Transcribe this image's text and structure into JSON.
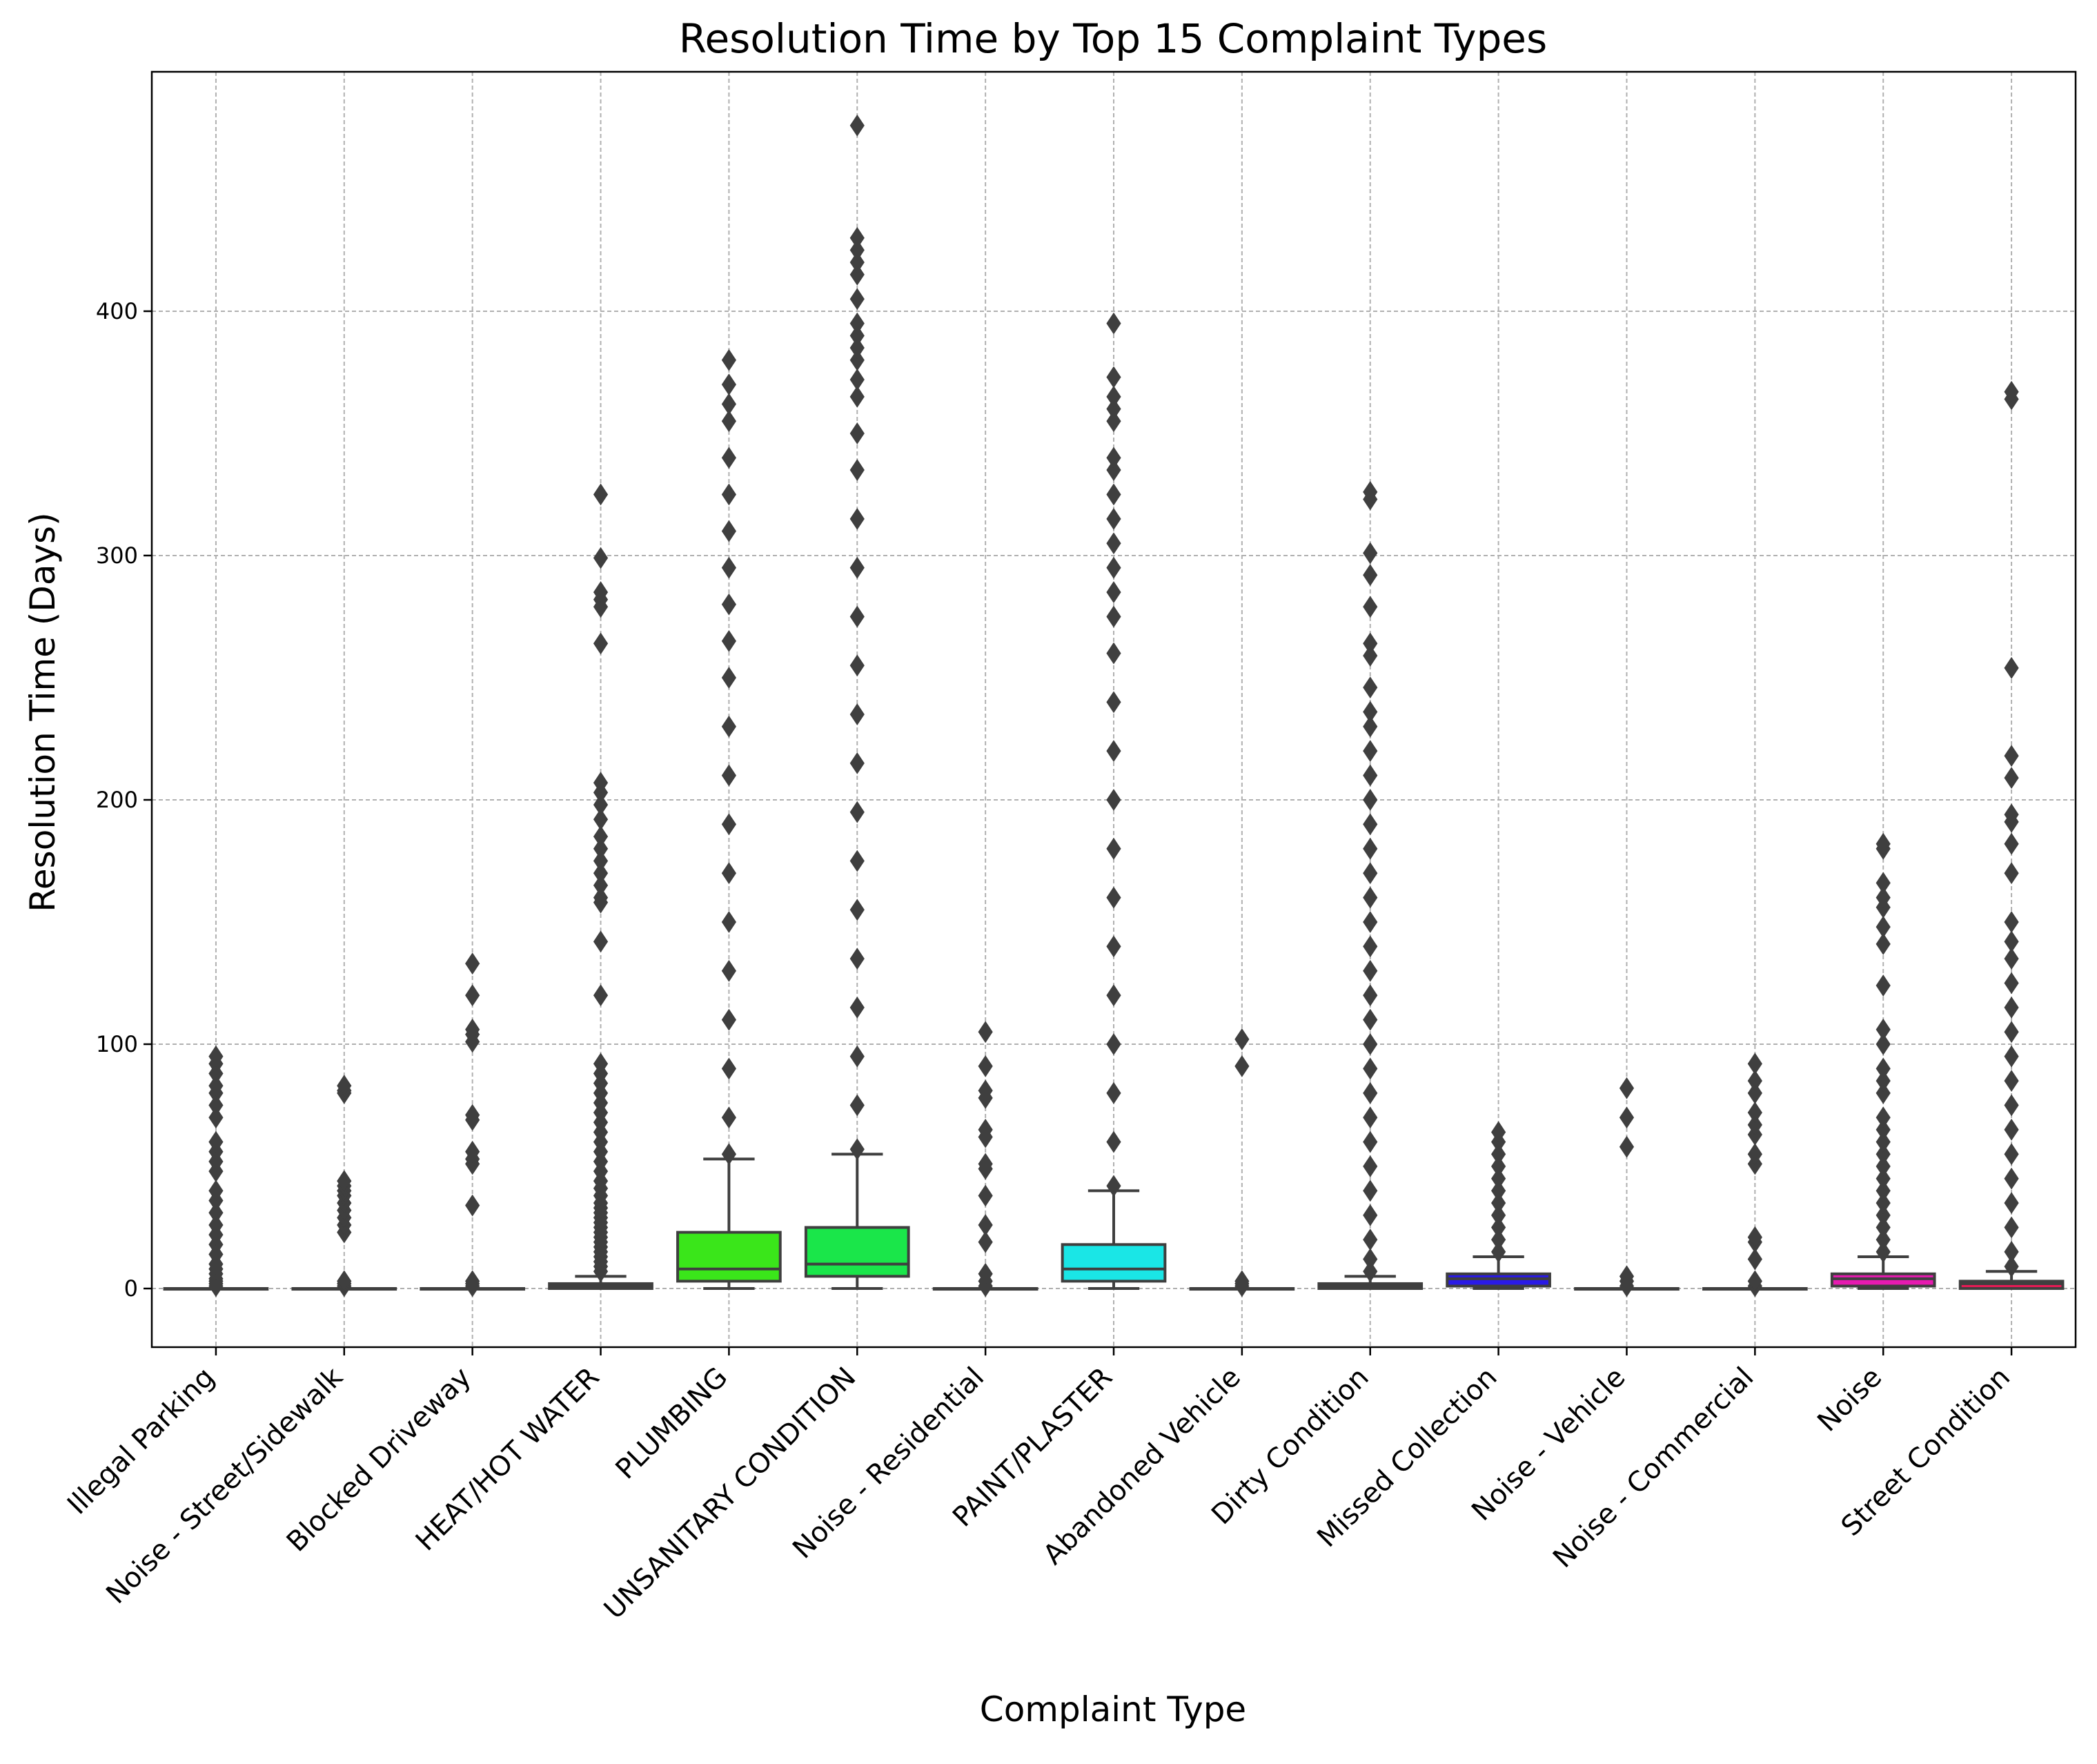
{
  "chart_data": {
    "type": "box",
    "title": "Resolution Time by Top 15 Complaint Types",
    "xlabel": "Complaint Type",
    "ylabel": "Resolution Time (Days)",
    "ylim": [
      -24,
      498
    ],
    "yticks": [
      0,
      100,
      200,
      300,
      400
    ],
    "grid": true,
    "categories": [
      "Illegal Parking",
      "Noise - Street/Sidewalk",
      "Blocked Driveway",
      "HEAT/HOT WATER",
      "PLUMBING",
      "UNSANITARY CONDITION",
      "Noise - Residential",
      "PAINT/PLASTER",
      "Abandoned Vehicle",
      "Dirty Condition",
      "Missed Collection",
      "Noise - Vehicle",
      "Noise - Commercial",
      "Noise",
      "Street Condition"
    ],
    "boxes": [
      {
        "category": "Illegal Parking",
        "color": "#e63030",
        "whisker_low": 0,
        "q1": 0,
        "median": 0,
        "q3": 0,
        "whisker_high": 0,
        "outliers": [
          1,
          2,
          3,
          4,
          6,
          8,
          10,
          14,
          18,
          22,
          26,
          31,
          36,
          40,
          48,
          52,
          56,
          60,
          70,
          75,
          80,
          83,
          88,
          92,
          95
        ]
      },
      {
        "category": "Noise - Street/Sidewalk",
        "color": "#e67a30",
        "whisker_low": 0,
        "q1": 0,
        "median": 0,
        "q3": 0,
        "whisker_high": 0,
        "outliers": [
          1,
          2,
          3,
          23,
          26,
          29,
          32,
          35,
          38,
          40,
          42,
          44,
          80,
          81,
          83
        ]
      },
      {
        "category": "Blocked Driveway",
        "color": "#e6c530",
        "whisker_low": 0,
        "q1": 0,
        "median": 0,
        "q3": 0,
        "whisker_high": 0,
        "outliers": [
          1,
          2,
          3,
          34,
          51,
          53,
          56,
          69,
          71,
          101,
          104,
          106,
          120,
          133
        ]
      },
      {
        "category": "HEAT/HOT WATER",
        "color": "#b0e630",
        "whisker_low": 0,
        "q1": 0,
        "median": 1,
        "q3": 2,
        "whisker_high": 5,
        "outliers": [
          7,
          9,
          11,
          13,
          15,
          17,
          19,
          21,
          23,
          25,
          27,
          29,
          31,
          33,
          35,
          38,
          41,
          44,
          48,
          52,
          56,
          60,
          64,
          68,
          72,
          76,
          80,
          84,
          88,
          92,
          120,
          142,
          158,
          160,
          165,
          170,
          175,
          180,
          185,
          192,
          198,
          203,
          207,
          264,
          279,
          282,
          285,
          299,
          325
        ]
      },
      {
        "category": "PLUMBING",
        "color": "#3ae61a",
        "whisker_low": 0,
        "q1": 3,
        "median": 8,
        "q3": 23,
        "whisker_high": 53,
        "outliers": [
          55,
          70,
          90,
          110,
          130,
          150,
          170,
          190,
          210,
          230,
          250,
          265,
          280,
          295,
          310,
          325,
          340,
          355,
          362,
          370,
          380
        ]
      },
      {
        "category": "UNSANITARY CONDITION",
        "color": "#1ae64a",
        "whisker_low": 0,
        "q1": 5,
        "median": 10,
        "q3": 25,
        "whisker_high": 55,
        "outliers": [
          57,
          75,
          95,
          115,
          135,
          155,
          175,
          195,
          215,
          235,
          255,
          275,
          295,
          315,
          335,
          350,
          365,
          372,
          380,
          385,
          390,
          395,
          405,
          415,
          420,
          425,
          430,
          476
        ]
      },
      {
        "category": "Noise - Residential",
        "color": "#1ae6a0",
        "whisker_low": 0,
        "q1": 0,
        "median": 0,
        "q3": 0,
        "whisker_high": 0,
        "outliers": [
          1,
          3,
          6,
          19,
          26,
          38,
          49,
          51,
          62,
          65,
          78,
          81,
          91,
          105
        ]
      },
      {
        "category": "PAINT/PLASTER",
        "color": "#1ae6e6",
        "whisker_low": 0,
        "q1": 3,
        "median": 8,
        "q3": 18,
        "whisker_high": 40,
        "outliers": [
          42,
          60,
          80,
          100,
          120,
          140,
          160,
          180,
          200,
          220,
          240,
          260,
          275,
          285,
          295,
          305,
          315,
          325,
          335,
          340,
          355,
          360,
          365,
          373,
          395
        ]
      },
      {
        "category": "Abandoned Vehicle",
        "color": "#1a9ee6",
        "whisker_low": 0,
        "q1": 0,
        "median": 0,
        "q3": 0,
        "whisker_high": 0,
        "outliers": [
          1,
          2,
          3,
          91,
          102
        ]
      },
      {
        "category": "Dirty Condition",
        "color": "#1a55e6",
        "whisker_low": 0,
        "q1": 0,
        "median": 1,
        "q3": 2,
        "whisker_high": 5,
        "outliers": [
          7,
          12,
          20,
          30,
          40,
          50,
          60,
          70,
          80,
          90,
          100,
          110,
          120,
          130,
          140,
          150,
          160,
          170,
          180,
          190,
          200,
          210,
          220,
          230,
          236,
          246,
          259,
          264,
          279,
          292,
          301,
          323,
          326
        ]
      },
      {
        "category": "Missed Collection",
        "color": "#2a1ae6",
        "whisker_low": 0,
        "q1": 1,
        "median": 4,
        "q3": 6,
        "whisker_high": 13,
        "outliers": [
          15,
          20,
          25,
          30,
          35,
          40,
          45,
          50,
          55,
          60,
          64
        ]
      },
      {
        "category": "Noise - Vehicle",
        "color": "#7a1ae6",
        "whisker_low": 0,
        "q1": 0,
        "median": 0,
        "q3": 0,
        "whisker_high": 0,
        "outliers": [
          1,
          3,
          5,
          58,
          70,
          82
        ]
      },
      {
        "category": "Noise - Commercial",
        "color": "#c51ae6",
        "whisker_low": 0,
        "q1": 0,
        "median": 0,
        "q3": 0,
        "whisker_high": 0,
        "outliers": [
          1,
          3,
          12,
          19,
          21,
          51,
          55,
          63,
          67,
          72,
          80,
          85,
          92
        ]
      },
      {
        "category": "Noise",
        "color": "#e61ab0",
        "whisker_low": 0,
        "q1": 1,
        "median": 4,
        "q3": 6,
        "whisker_high": 13,
        "outliers": [
          15,
          20,
          25,
          30,
          35,
          40,
          45,
          50,
          55,
          60,
          65,
          70,
          80,
          85,
          90,
          100,
          106,
          124,
          141,
          148,
          156,
          160,
          166,
          180,
          182
        ]
      },
      {
        "category": "Street Condition",
        "color": "#e61a55",
        "whisker_low": 0,
        "q1": 0,
        "median": 2,
        "q3": 3,
        "whisker_high": 7,
        "outliers": [
          9,
          15,
          25,
          35,
          45,
          55,
          65,
          75,
          85,
          95,
          105,
          115,
          125,
          135,
          142,
          150,
          170,
          182,
          191,
          194,
          209,
          218,
          254,
          364,
          367
        ]
      }
    ]
  }
}
